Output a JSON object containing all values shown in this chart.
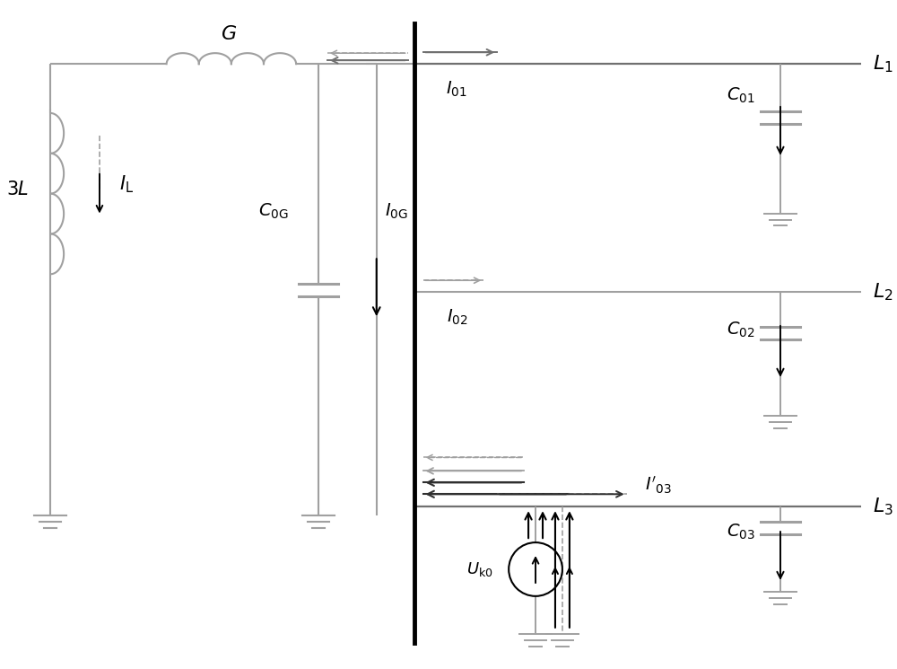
{
  "bg_color": "#ffffff",
  "lc": "#a0a0a0",
  "dc": "#303030",
  "mc": "#707070",
  "fig_width": 10.0,
  "fig_height": 7.45
}
